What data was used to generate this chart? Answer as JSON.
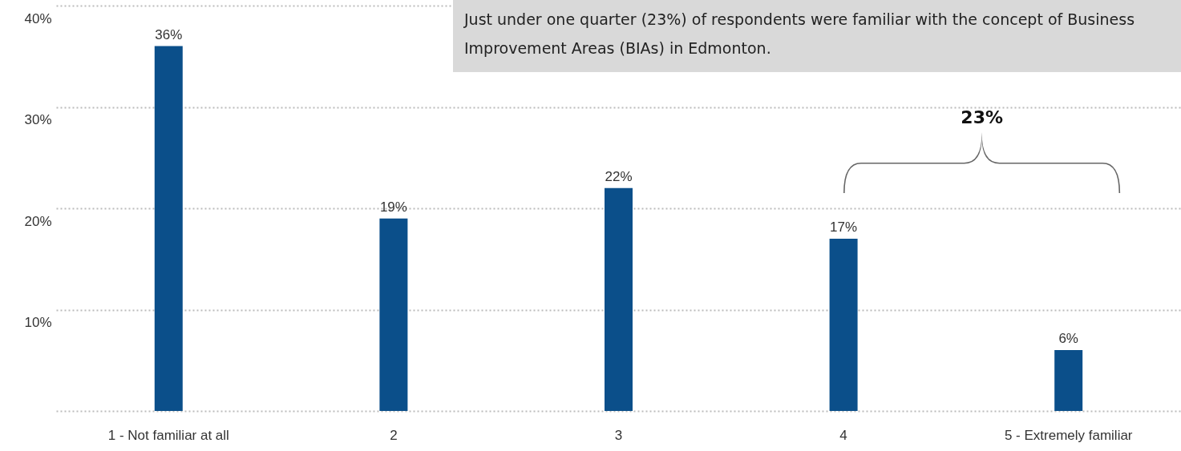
{
  "chart_data": {
    "type": "bar",
    "categories": [
      "1 - Not familiar at all",
      "2",
      "3",
      "4",
      "5 - Extremely familiar"
    ],
    "values": [
      36,
      19,
      22,
      17,
      6
    ],
    "value_labels": [
      "36%",
      "19%",
      "22%",
      "17%",
      "6%"
    ],
    "color": "#0b4f8a",
    "ylim": [
      0,
      40
    ],
    "yticks": [
      {
        "value": 0,
        "label": null
      },
      {
        "value": 10,
        "label": "10%"
      },
      {
        "value": 20,
        "label": "20%"
      },
      {
        "value": 30,
        "label": "30%"
      },
      {
        "value": 40,
        "label": "40%"
      }
    ],
    "grid": "y",
    "annotations": [
      "Just under one quarter (23%) of respondents were familiar with the concept of Business Improvement Areas (BIAs) in Edmonton.",
      "23%"
    ]
  }
}
